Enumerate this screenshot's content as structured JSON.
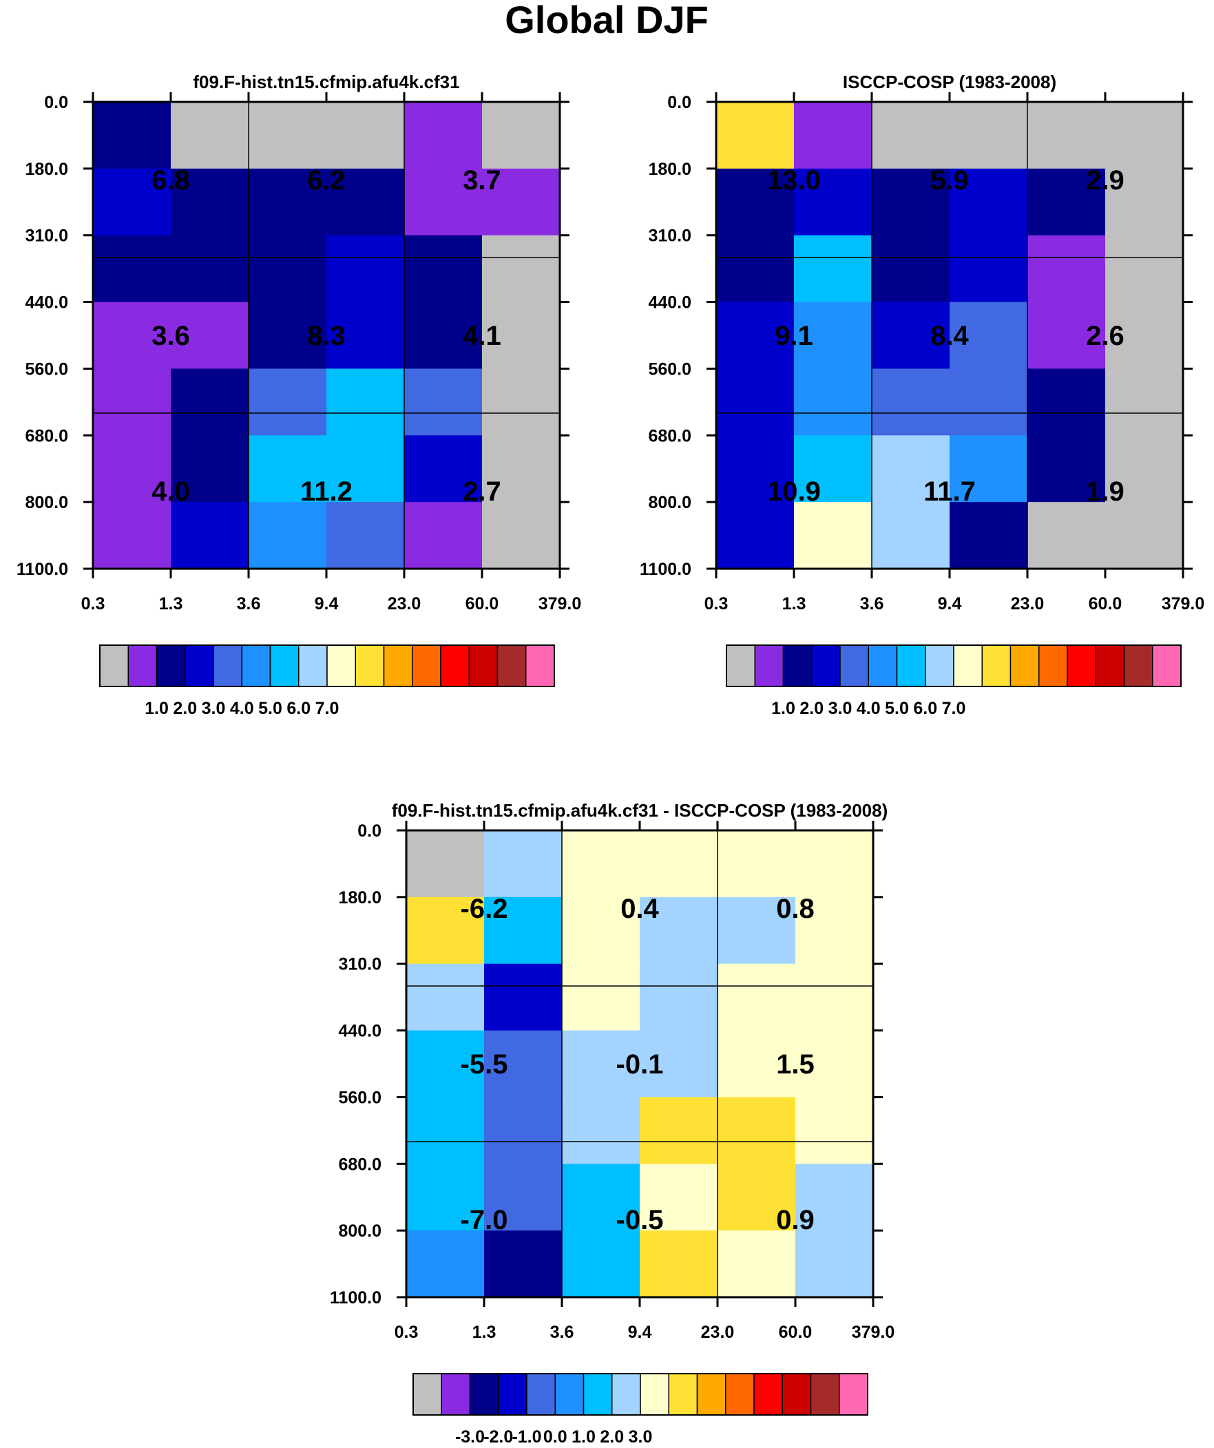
{
  "page_title": "Global DJF",
  "color_palette": [
    "#c0c0c0",
    "#8a2be2",
    "#00008b",
    "#0000cd",
    "#4169e1",
    "#1e90ff",
    "#00bfff",
    "#a3d3ff",
    "#ffffcc",
    "#ffe135",
    "#ffaa00",
    "#ff6a00",
    "#ff0000",
    "#cd0000",
    "#a52a2a",
    "#ff69b4"
  ],
  "chart_data": [
    {
      "type": "heatmap",
      "title": "f09.F-hist.tn15.cfmip.afu4k.cf31",
      "x_ticks": [
        "0.3",
        "1.3",
        "3.6",
        "9.4",
        "23.0",
        "60.0",
        "379.0"
      ],
      "y_ticks": [
        "0.0",
        "180.0",
        "310.0",
        "440.0",
        "560.0",
        "680.0",
        "800.0",
        "1100.0"
      ],
      "cell_color_index": [
        [
          2,
          0,
          0,
          0,
          1,
          0
        ],
        [
          3,
          2,
          2,
          2,
          1,
          1
        ],
        [
          2,
          2,
          2,
          3,
          2,
          0
        ],
        [
          1,
          1,
          2,
          3,
          2,
          0
        ],
        [
          1,
          2,
          4,
          6,
          4,
          0
        ],
        [
          1,
          2,
          6,
          6,
          3,
          0
        ],
        [
          1,
          3,
          5,
          4,
          1,
          0
        ]
      ],
      "box_labels": [
        [
          "6.8",
          "6.2",
          "3.7"
        ],
        [
          "3.6",
          "8.3",
          "4.1"
        ],
        [
          "4.0",
          "11.2",
          "2.7"
        ]
      ],
      "colorbar_ticks": [
        "1.0",
        "2.0",
        "3.0",
        "4.0",
        "5.0",
        "6.0",
        "7.0"
      ]
    },
    {
      "type": "heatmap",
      "title": "ISCCP-COSP (1983-2008)",
      "x_ticks": [
        "0.3",
        "1.3",
        "3.6",
        "9.4",
        "23.0",
        "60.0",
        "379.0"
      ],
      "y_ticks": [
        "0.0",
        "180.0",
        "310.0",
        "440.0",
        "560.0",
        "680.0",
        "800.0",
        "1100.0"
      ],
      "cell_color_index": [
        [
          9,
          1,
          0,
          0,
          0,
          0
        ],
        [
          2,
          3,
          2,
          3,
          2,
          0
        ],
        [
          2,
          6,
          2,
          3,
          1,
          0
        ],
        [
          3,
          5,
          3,
          4,
          1,
          0
        ],
        [
          3,
          5,
          4,
          4,
          2,
          0
        ],
        [
          3,
          6,
          7,
          5,
          2,
          0
        ],
        [
          3,
          8,
          7,
          2,
          0,
          0
        ]
      ],
      "box_labels": [
        [
          "13.0",
          "5.9",
          "2.9"
        ],
        [
          "9.1",
          "8.4",
          "2.6"
        ],
        [
          "10.9",
          "11.7",
          "1.9"
        ]
      ],
      "colorbar_ticks": [
        "1.0",
        "2.0",
        "3.0",
        "4.0",
        "5.0",
        "6.0",
        "7.0"
      ]
    },
    {
      "type": "heatmap",
      "title": "f09.F-hist.tn15.cfmip.afu4k.cf31 - ISCCP-COSP (1983-2008)",
      "x_ticks": [
        "0.3",
        "1.3",
        "3.6",
        "9.4",
        "23.0",
        "60.0",
        "379.0"
      ],
      "y_ticks": [
        "0.0",
        "180.0",
        "310.0",
        "440.0",
        "560.0",
        "680.0",
        "800.0",
        "1100.0"
      ],
      "cell_color_index": [
        [
          0,
          7,
          8,
          8,
          8,
          8
        ],
        [
          9,
          6,
          8,
          7,
          7,
          8
        ],
        [
          7,
          3,
          8,
          7,
          8,
          8
        ],
        [
          6,
          4,
          7,
          7,
          8,
          8
        ],
        [
          6,
          4,
          7,
          9,
          9,
          8
        ],
        [
          6,
          4,
          6,
          8,
          9,
          7
        ],
        [
          5,
          2,
          6,
          9,
          8,
          7
        ]
      ],
      "box_labels": [
        [
          "-6.2",
          "0.4",
          "0.8"
        ],
        [
          "-5.5",
          "-0.1",
          "1.5"
        ],
        [
          "-7.0",
          "-0.5",
          "0.9"
        ]
      ],
      "colorbar_ticks": [
        "-3.0",
        "-2.0",
        "-1.0",
        "0.0",
        "1.0",
        "2.0",
        "3.0"
      ]
    }
  ]
}
